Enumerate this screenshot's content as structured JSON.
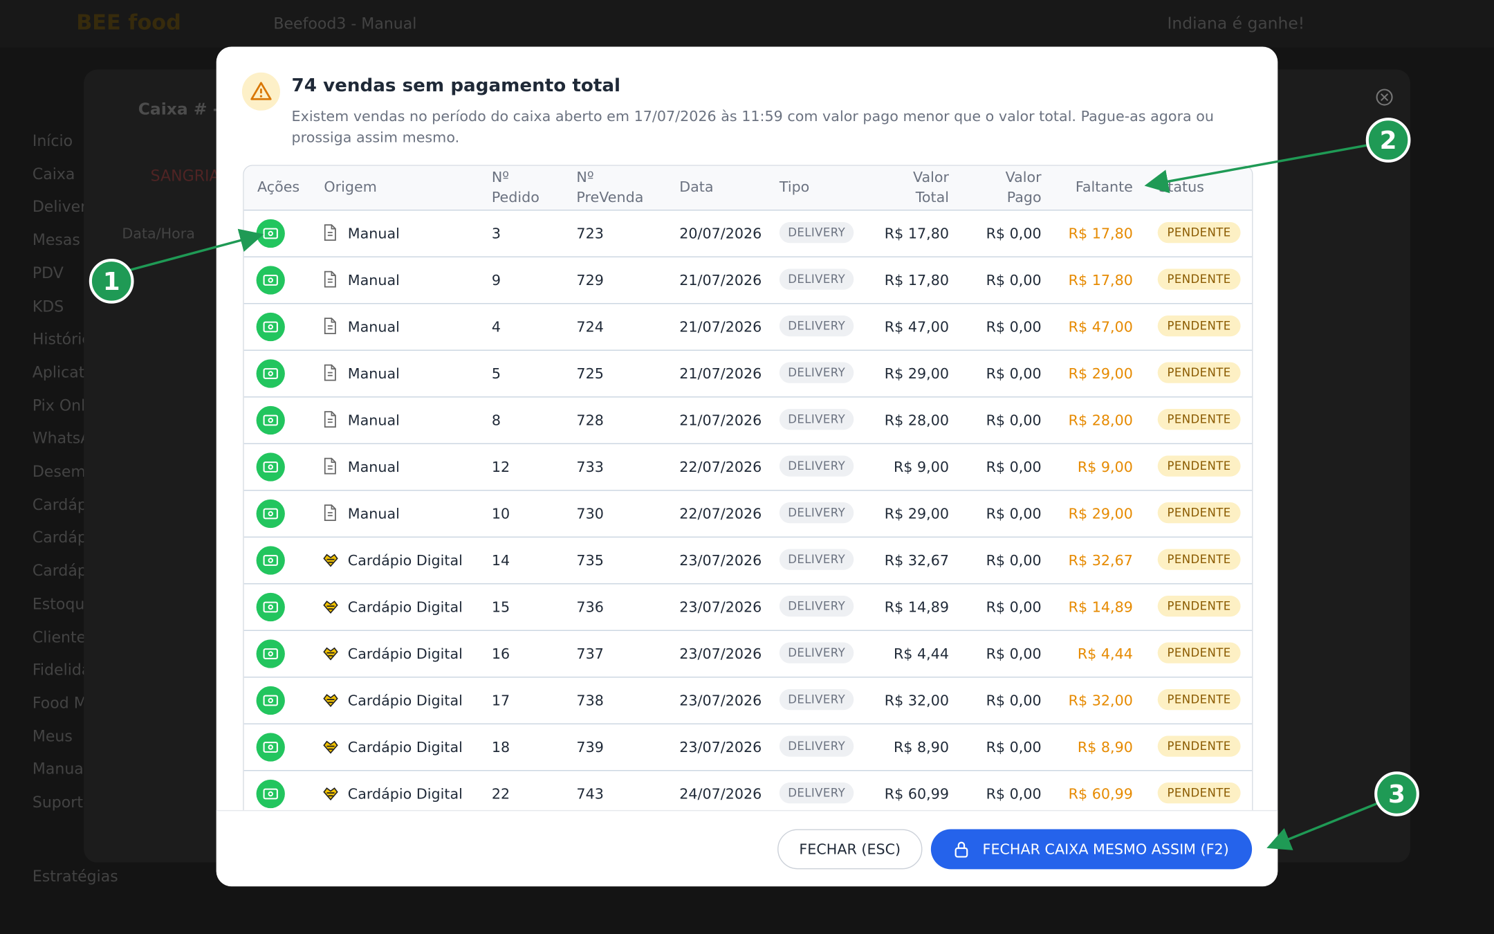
{
  "background": {
    "logo": "BEE food",
    "store": "Beefood3 - Manual",
    "greeting": "Indiana é ganhe!",
    "panel_title": "Caixa # - d",
    "sangria": "SANGRIA",
    "date_header": "Data/Hora",
    "sidebar": [
      "Início",
      "Caixa",
      "Delivery",
      "Mesas",
      "PDV",
      "KDS",
      "Histórico",
      "Aplicativo",
      "Pix Online",
      "WhatsApp",
      "Desempenho",
      "Cardápio",
      "Cardápio",
      "Cardápio",
      "Estoque",
      "Clientes",
      "Fidelidade",
      "Food Marketing",
      "Meus",
      "Manual",
      "Suporte",
      "Estratégias"
    ]
  },
  "dialog": {
    "title": "74 vendas sem pagamento total",
    "message": "Existem vendas no período do caixa aberto em 17/07/2026 às 11:59 com valor pago menor que o valor total. Pague-as agora ou prossiga assim mesmo.",
    "table": {
      "headers": [
        "Ações",
        "Origem",
        "Nº Pedido",
        "Nº PreVenda",
        "Data",
        "Tipo",
        "Valor Total",
        "Valor Pago",
        "Faltante",
        "Status"
      ],
      "rows": [
        [
          "Manual",
          "3",
          "723",
          "20/07/2026",
          "DELIVERY",
          "R$ 17,80",
          "R$ 0,00",
          "R$ 17,80",
          "PENDENTE"
        ],
        [
          "Manual",
          "9",
          "729",
          "21/07/2026",
          "DELIVERY",
          "R$ 17,80",
          "R$ 0,00",
          "R$ 17,80",
          "PENDENTE"
        ],
        [
          "Manual",
          "4",
          "724",
          "21/07/2026",
          "DELIVERY",
          "R$ 47,00",
          "R$ 0,00",
          "R$ 47,00",
          "PENDENTE"
        ],
        [
          "Manual",
          "5",
          "725",
          "21/07/2026",
          "DELIVERY",
          "R$ 29,00",
          "R$ 0,00",
          "R$ 29,00",
          "PENDENTE"
        ],
        [
          "Manual",
          "8",
          "728",
          "21/07/2026",
          "DELIVERY",
          "R$ 28,00",
          "R$ 0,00",
          "R$ 28,00",
          "PENDENTE"
        ],
        [
          "Manual",
          "12",
          "733",
          "22/07/2026",
          "DELIVERY",
          "R$ 9,00",
          "R$ 0,00",
          "R$ 9,00",
          "PENDENTE"
        ],
        [
          "Manual",
          "10",
          "730",
          "22/07/2026",
          "DELIVERY",
          "R$ 29,00",
          "R$ 0,00",
          "R$ 29,00",
          "PENDENTE"
        ],
        [
          "Cardápio Digital",
          "14",
          "735",
          "23/07/2026",
          "DELIVERY",
          "R$ 32,67",
          "R$ 0,00",
          "R$ 32,67",
          "PENDENTE"
        ],
        [
          "Cardápio Digital",
          "15",
          "736",
          "23/07/2026",
          "DELIVERY",
          "R$ 14,89",
          "R$ 0,00",
          "R$ 14,89",
          "PENDENTE"
        ],
        [
          "Cardápio Digital",
          "16",
          "737",
          "23/07/2026",
          "DELIVERY",
          "R$ 4,44",
          "R$ 0,00",
          "R$ 4,44",
          "PENDENTE"
        ],
        [
          "Cardápio Digital",
          "17",
          "738",
          "23/07/2026",
          "DELIVERY",
          "R$ 32,00",
          "R$ 0,00",
          "R$ 32,00",
          "PENDENTE"
        ],
        [
          "Cardápio Digital",
          "18",
          "739",
          "23/07/2026",
          "DELIVERY",
          "R$ 8,90",
          "R$ 0,00",
          "R$ 8,90",
          "PENDENTE"
        ],
        [
          "Cardápio Digital",
          "22",
          "743",
          "24/07/2026",
          "DELIVERY",
          "R$ 60,99",
          "R$ 0,00",
          "R$ 60,99",
          "PENDENTE"
        ]
      ]
    },
    "buttons": [
      "FECHAR (ESC)",
      "FECHAR CAIXA MESMO ASSIM (F2)"
    ]
  },
  "annotations": [
    "1",
    "2",
    "3"
  ]
}
